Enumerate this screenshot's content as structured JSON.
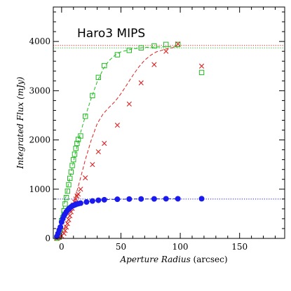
{
  "chart_data": {
    "type": "scatter",
    "title": "Haro3   MIPS",
    "xlabel_main": "Aperture Radius",
    "xlabel_unit": " (arcsec)",
    "ylabel": "Integrated Flux (mJy)",
    "xlim": [
      -7,
      188
    ],
    "ylim": [
      0,
      4700
    ],
    "xticks": [
      0,
      50,
      100,
      150
    ],
    "yticks": [
      0,
      1000,
      2000,
      3000,
      4000
    ],
    "grid": false,
    "legend": "none",
    "series": [
      {
        "marker": "open-square",
        "color": "#22bb22",
        "points": [
          [
            -4,
            5
          ],
          [
            -3,
            20
          ],
          [
            -2,
            60
          ],
          [
            -1,
            170
          ],
          [
            0,
            360
          ],
          [
            1,
            420
          ],
          [
            2,
            560
          ],
          [
            3,
            700
          ],
          [
            4,
            830
          ],
          [
            5,
            960
          ],
          [
            6,
            1090
          ],
          [
            7,
            1220
          ],
          [
            8,
            1350
          ],
          [
            9,
            1480
          ],
          [
            10,
            1600
          ],
          [
            11,
            1710
          ],
          [
            12,
            1830
          ],
          [
            13,
            1930
          ],
          [
            14,
            2010
          ],
          [
            16,
            2080
          ],
          [
            20,
            2480
          ],
          [
            26,
            2900
          ],
          [
            31,
            3270
          ],
          [
            36,
            3510
          ],
          [
            47,
            3730
          ],
          [
            57,
            3820
          ],
          [
            67,
            3870
          ],
          [
            78,
            3910
          ],
          [
            88,
            3940
          ],
          [
            98,
            3940
          ],
          [
            118,
            3370
          ]
        ]
      },
      {
        "marker": "cross",
        "color": "#dd2222",
        "points": [
          [
            -4,
            5
          ],
          [
            -2,
            20
          ],
          [
            0,
            50
          ],
          [
            2,
            100
          ],
          [
            3,
            160
          ],
          [
            4,
            230
          ],
          [
            5,
            300
          ],
          [
            6,
            380
          ],
          [
            7,
            460
          ],
          [
            8,
            540
          ],
          [
            9,
            610
          ],
          [
            10,
            680
          ],
          [
            11,
            740
          ],
          [
            12,
            800
          ],
          [
            13,
            860
          ],
          [
            14,
            900
          ],
          [
            16,
            1000
          ],
          [
            20,
            1230
          ],
          [
            26,
            1500
          ],
          [
            31,
            1760
          ],
          [
            36,
            1930
          ],
          [
            47,
            2300
          ],
          [
            57,
            2730
          ],
          [
            67,
            3160
          ],
          [
            78,
            3530
          ],
          [
            88,
            3800
          ],
          [
            98,
            3950
          ],
          [
            118,
            3500
          ]
        ]
      },
      {
        "marker": "filled-circle",
        "color": "#1a1aee",
        "points": [
          [
            -4,
            40
          ],
          [
            -3,
            100
          ],
          [
            -2,
            170
          ],
          [
            -1,
            230
          ],
          [
            0,
            330
          ],
          [
            1,
            400
          ],
          [
            2,
            460
          ],
          [
            3,
            500
          ],
          [
            4,
            540
          ],
          [
            5,
            570
          ],
          [
            6,
            600
          ],
          [
            7,
            620
          ],
          [
            8,
            640
          ],
          [
            9,
            660
          ],
          [
            10,
            670
          ],
          [
            11,
            680
          ],
          [
            12,
            690
          ],
          [
            13,
            700
          ],
          [
            14,
            705
          ],
          [
            16,
            715
          ],
          [
            21,
            740
          ],
          [
            26,
            760
          ],
          [
            31,
            775
          ],
          [
            36,
            785
          ],
          [
            47,
            795
          ],
          [
            57,
            800
          ],
          [
            67,
            802
          ],
          [
            78,
            803
          ],
          [
            88,
            805
          ],
          [
            98,
            805
          ],
          [
            118,
            806
          ]
        ]
      }
    ],
    "curves": [
      {
        "style": "dashed",
        "color": "#22bb22",
        "points": [
          [
            0,
            480
          ],
          [
            3,
            780
          ],
          [
            6,
            1130
          ],
          [
            9,
            1450
          ],
          [
            12,
            1780
          ],
          [
            16,
            2150
          ],
          [
            20,
            2480
          ],
          [
            25,
            2850
          ],
          [
            30,
            3180
          ],
          [
            35,
            3440
          ],
          [
            40,
            3610
          ],
          [
            45,
            3720
          ],
          [
            50,
            3790
          ],
          [
            60,
            3850
          ],
          [
            70,
            3880
          ],
          [
            80,
            3890
          ],
          [
            90,
            3895
          ],
          [
            100,
            3900
          ]
        ]
      },
      {
        "style": "dashed",
        "color": "#dd2222",
        "points": [
          [
            0,
            100
          ],
          [
            4,
            300
          ],
          [
            8,
            560
          ],
          [
            12,
            880
          ],
          [
            16,
            1230
          ],
          [
            20,
            1600
          ],
          [
            25,
            2000
          ],
          [
            30,
            2330
          ],
          [
            35,
            2530
          ],
          [
            40,
            2660
          ],
          [
            45,
            2780
          ],
          [
            50,
            2940
          ],
          [
            55,
            3120
          ],
          [
            60,
            3310
          ],
          [
            65,
            3480
          ],
          [
            70,
            3620
          ],
          [
            75,
            3720
          ],
          [
            80,
            3790
          ],
          [
            90,
            3860
          ],
          [
            100,
            3900
          ]
        ]
      },
      {
        "style": "dashed",
        "color": "#1a1aee",
        "points": [
          [
            0,
            420
          ],
          [
            3,
            530
          ],
          [
            6,
            610
          ],
          [
            10,
            670
          ],
          [
            15,
            710
          ],
          [
            20,
            740
          ],
          [
            30,
            775
          ],
          [
            40,
            790
          ],
          [
            60,
            800
          ],
          [
            100,
            805
          ]
        ]
      }
    ],
    "reference_lines": [
      {
        "style": "dotted",
        "color": "#22bb22",
        "y": 3870
      },
      {
        "style": "dotted",
        "color": "#dd2222",
        "y": 3920
      },
      {
        "style": "dotted",
        "color": "#1a1aee",
        "y": 800
      }
    ]
  }
}
